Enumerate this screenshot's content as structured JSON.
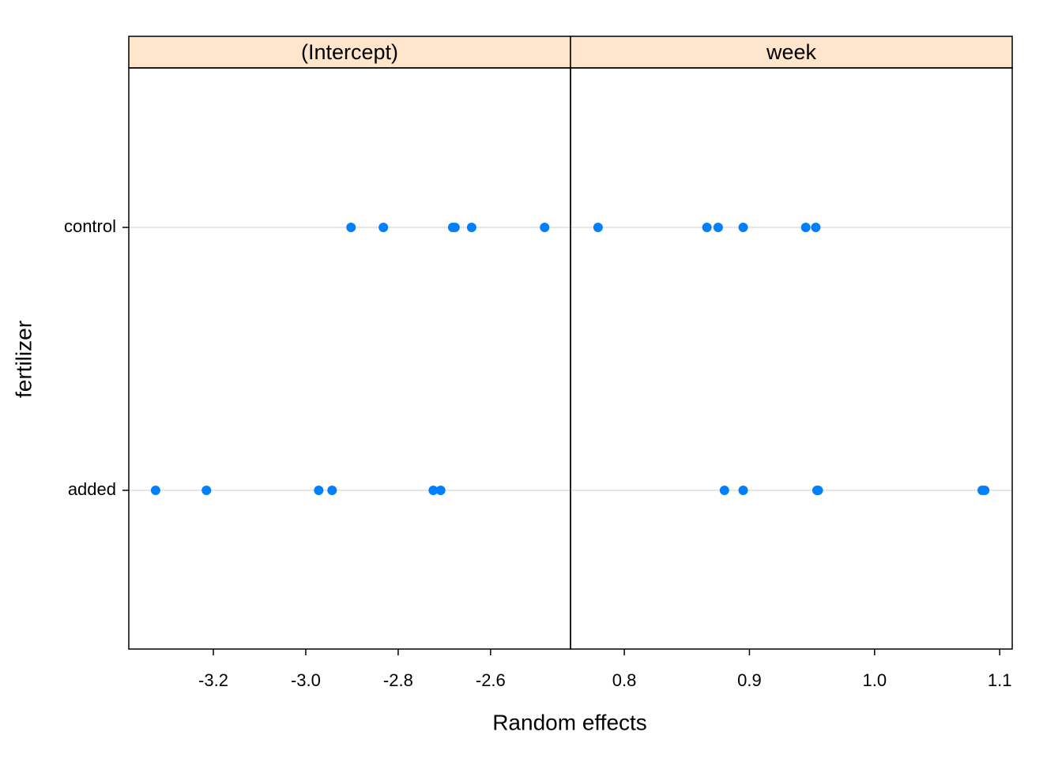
{
  "chart_data": {
    "type": "dot",
    "xlabel": "Random effects",
    "ylabel": "fertilizer",
    "categories": [
      "added",
      "control"
    ],
    "color": "#0080ff",
    "grid": true,
    "panels": [
      {
        "title": "(Intercept)",
        "xlim": [
          -3.383,
          -2.427
        ],
        "xticks": [
          -3.2,
          {
            "value": -3.0,
            "label": "-3.0"
          },
          -2.8,
          -2.6
        ],
        "values": [
          [
            -3.325,
            -3.215,
            -2.972,
            -2.943,
            -2.724,
            -2.708
          ],
          [
            -2.902,
            -2.832,
            -2.682,
            -2.677,
            -2.641,
            -2.483
          ]
        ]
      },
      {
        "title": "week",
        "xlim": [
          0.757,
          1.11
        ],
        "xticks": [
          0.8,
          0.9,
          {
            "value": 1.0,
            "label": "1.0"
          },
          1.1
        ],
        "values": [
          [
            0.88,
            0.895,
            0.954,
            0.955,
            1.086,
            1.088
          ],
          [
            0.779,
            0.866,
            0.875,
            0.895,
            0.945,
            0.953
          ]
        ]
      }
    ]
  }
}
